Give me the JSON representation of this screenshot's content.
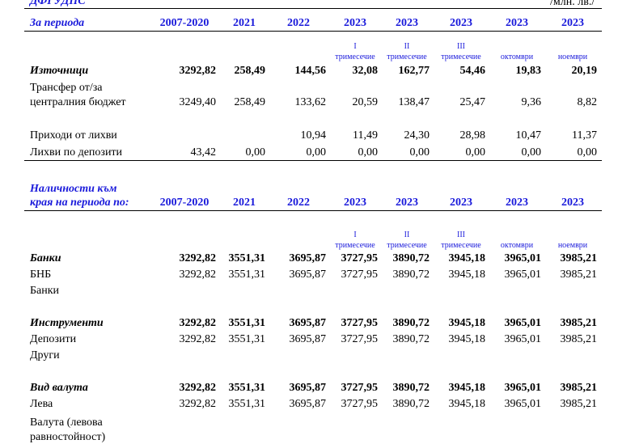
{
  "header": {
    "org": "ДФГУДПС",
    "unit": "/млн. лв./"
  },
  "columns": {
    "label1": "За периода",
    "label2a": "Наличности към",
    "label2b": "края на периода по:",
    "years": [
      "2007-2020",
      "2021",
      "2022",
      "2023",
      "2023",
      "2023",
      "2023",
      "2023"
    ],
    "sub": [
      {
        "a": "",
        "b": ""
      },
      {
        "a": "",
        "b": ""
      },
      {
        "a": "",
        "b": ""
      },
      {
        "a": "I",
        "b": "тримесечие"
      },
      {
        "a": "II",
        "b": "тримесечие"
      },
      {
        "a": "III",
        "b": "тримесечие"
      },
      {
        "a": "",
        "b": "октомври"
      },
      {
        "a": "",
        "b": "ноември"
      }
    ]
  },
  "rows": {
    "sources": {
      "label": "Източници",
      "values": [
        "3292,82",
        "258,49",
        "144,56",
        "32,08",
        "162,77",
        "54,46",
        "19,83",
        "20,19"
      ]
    },
    "transfer": {
      "label_a": "Трансфер от/за",
      "label_b": "централния бюджет",
      "values": [
        "3249,40",
        "258,49",
        "133,62",
        "20,59",
        "138,47",
        "25,47",
        "9,36",
        "8,82"
      ]
    },
    "interest": {
      "label": "Приходи от лихви",
      "values": [
        "",
        "",
        "10,94",
        "11,49",
        "24,30",
        "28,98",
        "10,47",
        "11,37"
      ]
    },
    "deposit_interest": {
      "label": "Лихви по депозити",
      "values": [
        "43,42",
        "0,00",
        "0,00",
        "0,00",
        "0,00",
        "0,00",
        "0,00",
        "0,00"
      ]
    },
    "banks": {
      "label": "Банки",
      "values": [
        "3292,82",
        "3551,31",
        "3695,87",
        "3727,95",
        "3890,72",
        "3945,18",
        "3965,01",
        "3985,21"
      ]
    },
    "bnb": {
      "label": "БНБ",
      "values": [
        "3292,82",
        "3551,31",
        "3695,87",
        "3727,95",
        "3890,72",
        "3945,18",
        "3965,01",
        "3985,21"
      ]
    },
    "banks2": {
      "label": "Банки"
    },
    "instruments": {
      "label": "Инструменти",
      "values": [
        "3292,82",
        "3551,31",
        "3695,87",
        "3727,95",
        "3890,72",
        "3945,18",
        "3965,01",
        "3985,21"
      ]
    },
    "deposits": {
      "label": "Депозити",
      "values": [
        "3292,82",
        "3551,31",
        "3695,87",
        "3727,95",
        "3890,72",
        "3945,18",
        "3965,01",
        "3985,21"
      ]
    },
    "other": {
      "label": "Други"
    },
    "currency_type": {
      "label": "Вид валута",
      "values": [
        "3292,82",
        "3551,31",
        "3695,87",
        "3727,95",
        "3890,72",
        "3945,18",
        "3965,01",
        "3985,21"
      ]
    },
    "leva": {
      "label": "Лева",
      "values": [
        "3292,82",
        "3551,31",
        "3695,87",
        "3727,95",
        "3890,72",
        "3945,18",
        "3965,01",
        "3985,21"
      ]
    },
    "foreign": {
      "label_a": "Валута (левова",
      "label_b": "равностойност)"
    }
  }
}
